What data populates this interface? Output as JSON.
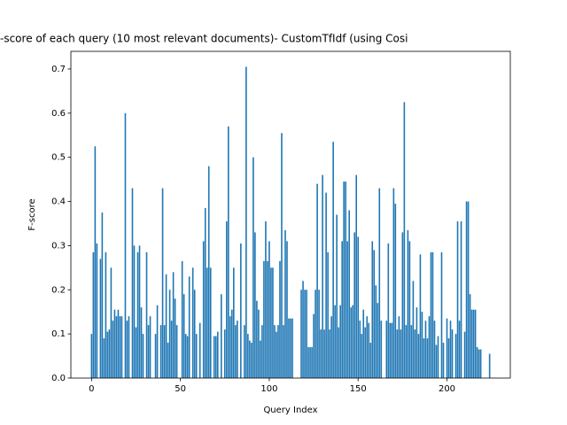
{
  "chart_data": {
    "type": "bar",
    "title": "-score of each query (10 most relevant documents)- CustomTfIdf (using Cosi",
    "x_label": "Query Index",
    "y_label": "F-score",
    "color": "#1f77b4",
    "xlim": [
      -11.64,
      235.64
    ],
    "xticks": [
      0,
      50,
      100,
      150,
      200
    ],
    "ylim": [
      0,
      0.74
    ],
    "yticks": [
      {
        "value": 0,
        "label": "0.0"
      },
      0.1,
      0.2,
      0.3,
      0.4,
      0.5,
      0.6,
      0.7
    ],
    "values": [
      0.1,
      0.285,
      0.525,
      0.305,
      0,
      0.27,
      0.375,
      0.09,
      0.285,
      0.105,
      0.11,
      0.25,
      0.13,
      0.155,
      0.14,
      0.155,
      0.14,
      0.14,
      0,
      0.6,
      0.13,
      0.14,
      0,
      0.43,
      0.3,
      0.115,
      0.285,
      0.3,
      0.16,
      0.1,
      0,
      0.285,
      0.12,
      0.14,
      0,
      0,
      0.1,
      0.165,
      0,
      0.12,
      0.43,
      0.12,
      0.235,
      0.08,
      0.2,
      0.13,
      0.24,
      0.18,
      0.12,
      0,
      0,
      0.265,
      0.19,
      0.1,
      0.095,
      0.23,
      0,
      0.25,
      0.2,
      0.1,
      0,
      0.125,
      0,
      0.31,
      0.385,
      0.25,
      0.48,
      0.25,
      0,
      0.095,
      0.095,
      0.105,
      0,
      0.19,
      0,
      0.11,
      0.355,
      0.57,
      0.14,
      0.155,
      0.25,
      0.12,
      0.13,
      0,
      0.305,
      0,
      0.12,
      0.705,
      0.1,
      0.085,
      0.08,
      0.5,
      0.33,
      0.175,
      0.155,
      0.085,
      0.12,
      0.265,
      0.355,
      0.265,
      0.31,
      0.25,
      0.25,
      0.12,
      0.105,
      0.12,
      0.265,
      0.555,
      0.12,
      0.335,
      0.31,
      0.135,
      0.135,
      0.135,
      0,
      0,
      0,
      0,
      0.2,
      0.22,
      0.2,
      0.2,
      0.07,
      0.07,
      0.07,
      0.145,
      0.2,
      0.44,
      0.2,
      0.11,
      0.46,
      0.11,
      0.42,
      0.285,
      0.11,
      0.14,
      0.535,
      0.165,
      0.37,
      0.115,
      0.165,
      0.31,
      0.445,
      0.445,
      0.31,
      0.38,
      0.16,
      0.165,
      0.33,
      0.46,
      0.32,
      0.13,
      0.1,
      0.155,
      0.115,
      0.14,
      0.125,
      0.08,
      0.31,
      0.29,
      0.21,
      0.17,
      0.43,
      0.13,
      0,
      0,
      0.13,
      0.305,
      0.125,
      0.125,
      0.43,
      0.395,
      0.11,
      0.14,
      0.11,
      0.33,
      0.625,
      0.12,
      0.335,
      0.31,
      0.12,
      0.22,
      0.11,
      0.16,
      0.1,
      0.28,
      0.15,
      0.09,
      0.13,
      0.09,
      0.14,
      0.285,
      0.285,
      0.13,
      0.075,
      0.095,
      0,
      0.285,
      0.08,
      0,
      0.135,
      0.09,
      0.13,
      0.11,
      0,
      0.1,
      0.355,
      0.13,
      0.355,
      0,
      0.105,
      0.4,
      0.4,
      0.19,
      0.155,
      0.155,
      0.155,
      0.07,
      0.065,
      0.065,
      0,
      0,
      0,
      0,
      0.055
    ]
  }
}
